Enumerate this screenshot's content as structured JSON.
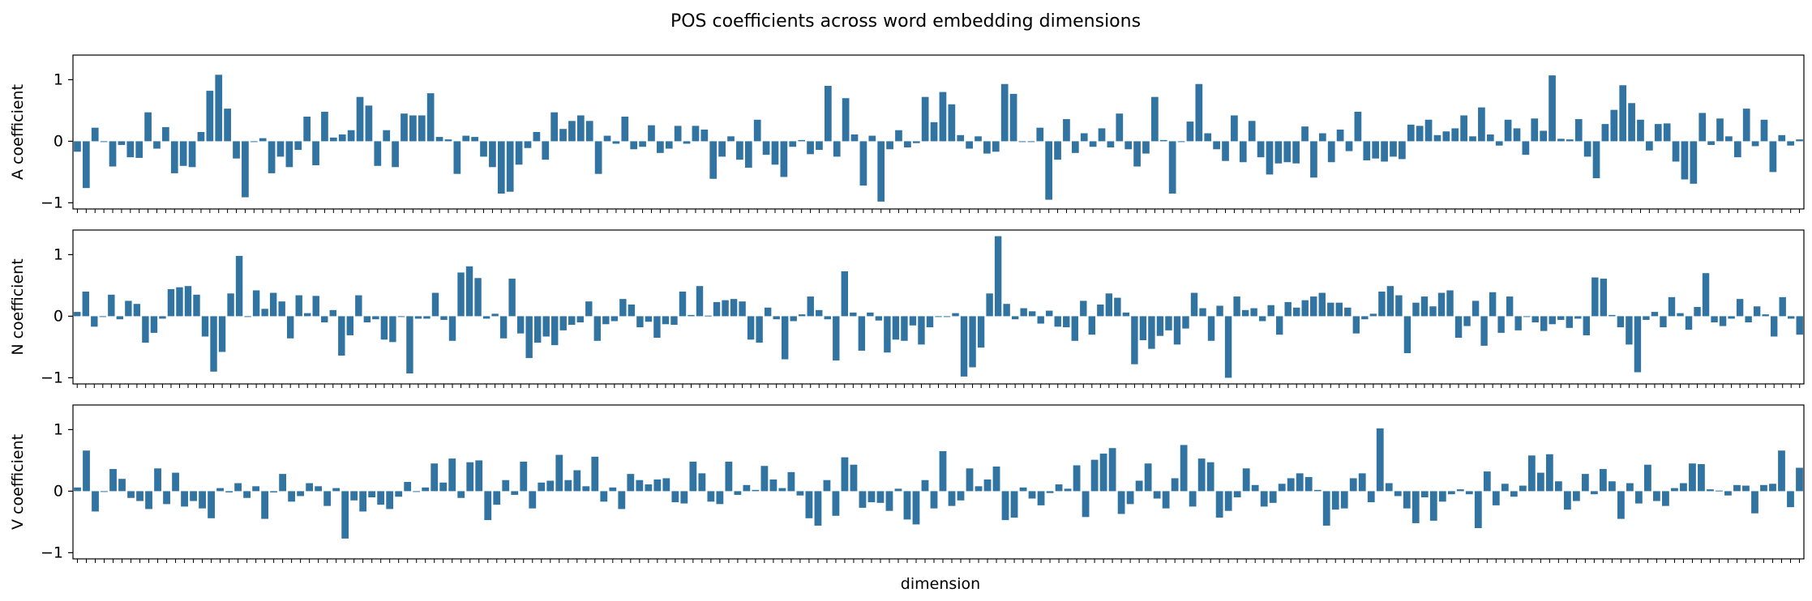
{
  "chart_data": {
    "type": "bar",
    "title": "POS coefficients across word embedding dimensions",
    "xlabel": "dimension",
    "bar_color": "#3274a1",
    "ylim": [
      -1.1,
      1.4
    ],
    "yticks": [
      -1,
      0,
      1
    ],
    "panels": [
      {
        "ylabel": "A coefficient",
        "values": [
          -0.17,
          -0.76,
          0.22,
          0,
          -0.41,
          -0.06,
          -0.26,
          -0.27,
          0.47,
          -0.12,
          0.23,
          -0.52,
          -0.4,
          -0.42,
          0.15,
          0.82,
          1.08,
          0.53,
          -0.28,
          -0.91,
          0,
          0.05,
          -0.52,
          -0.25,
          -0.42,
          -0.14,
          0.4,
          -0.39,
          0.48,
          0.06,
          0.11,
          0.18,
          0.72,
          0.58,
          -0.4,
          0.18,
          -0.42,
          0.45,
          0.42,
          0.42,
          0.78,
          0.07,
          0.03,
          -0.53,
          0.09,
          0.07,
          -0.25,
          -0.42,
          -0.85,
          -0.82,
          -0.38,
          -0.11,
          0.15,
          -0.3,
          0.47,
          0.2,
          0.33,
          0.42,
          0.33,
          -0.53,
          0.09,
          -0.04,
          0.4,
          -0.13,
          -0.09,
          0.26,
          -0.19,
          -0.12,
          0.25,
          -0.04,
          0.25,
          0.19,
          -0.61,
          -0.25,
          0.08,
          -0.3,
          -0.43,
          0.35,
          -0.22,
          -0.38,
          -0.58,
          -0.09,
          0.02,
          -0.21,
          -0.14,
          0.9,
          -0.25,
          0.7,
          0.11,
          -0.72,
          0.09,
          -0.98,
          -0.13,
          0.18,
          -0.1,
          -0.03,
          0.72,
          0.31,
          0.8,
          0.6,
          0.1,
          -0.12,
          0.08,
          -0.2,
          -0.17,
          0.93,
          0.77,
          0,
          0,
          0.22,
          -0.95,
          -0.3,
          0.36,
          -0.19,
          0.13,
          -0.09,
          0.21,
          -0.1,
          0.45,
          -0.13,
          -0.41,
          -0.2,
          0.72,
          0.02,
          -0.85,
          0,
          0.32,
          0.93,
          0.13,
          -0.13,
          -0.32,
          0.42,
          -0.34,
          0.33,
          -0.26,
          -0.54,
          -0.36,
          -0.34,
          -0.36,
          0.24,
          -0.59,
          0.13,
          -0.34,
          0.19,
          -0.16,
          0.48,
          -0.31,
          -0.28,
          -0.33,
          -0.25,
          -0.29,
          0.27,
          0.25,
          0.35,
          0.1,
          0.16,
          0.21,
          0.42,
          0.08,
          0.55,
          0.11,
          -0.07,
          0.35,
          0.21,
          -0.22,
          0.37,
          0.17,
          1.07,
          0.04,
          0.03,
          0.36,
          -0.25,
          -0.6,
          0.28,
          0.51,
          0.91,
          0.62,
          0.35,
          -0.15,
          0.28,
          0.29,
          -0.33,
          -0.62,
          -0.69,
          0.46,
          -0.06,
          0.37,
          0.08,
          -0.26,
          0.53,
          -0.08,
          0.35,
          -0.5,
          0.1,
          -0.07,
          0.03
        ],
        "values_note_first": "first value is the leftmost bar"
      },
      {
        "ylabel": "N coefficient",
        "values": [
          0.07,
          0.4,
          -0.17,
          0,
          0.35,
          -0.05,
          0.25,
          0.2,
          -0.43,
          -0.27,
          -0.04,
          0.44,
          0.47,
          0.49,
          0.35,
          -0.33,
          -0.9,
          -0.58,
          0.37,
          0.98,
          0,
          0.42,
          0.12,
          0.38,
          0.24,
          -0.36,
          0.34,
          0.05,
          0.33,
          -0.1,
          0.1,
          -0.64,
          -0.31,
          0.34,
          -0.1,
          -0.05,
          -0.38,
          -0.42,
          0,
          -0.93,
          -0.04,
          -0.04,
          0.38,
          -0.06,
          -0.4,
          0.71,
          0.81,
          0.62,
          -0.04,
          0.04,
          -0.36,
          0.61,
          -0.28,
          -0.68,
          -0.43,
          -0.33,
          -0.47,
          -0.23,
          -0.14,
          -0.1,
          0.24,
          -0.4,
          -0.13,
          -0.08,
          0.28,
          0.19,
          -0.18,
          -0.09,
          -0.35,
          -0.13,
          -0.14,
          0.4,
          0.02,
          0.49,
          0.01,
          0.23,
          0.26,
          0.28,
          0.24,
          -0.38,
          -0.43,
          0.14,
          -0.05,
          -0.7,
          -0.08,
          0.03,
          0.32,
          0.1,
          -0.05,
          -0.72,
          0.73,
          0.06,
          -0.56,
          0.06,
          -0.07,
          -0.59,
          -0.38,
          -0.4,
          -0.15,
          -0.46,
          -0.18,
          0,
          0,
          0.05,
          -0.98,
          -0.83,
          -0.51,
          0.37,
          1.3,
          0.2,
          -0.05,
          0.13,
          0.08,
          -0.12,
          0.09,
          -0.17,
          -0.18,
          -0.4,
          0.25,
          -0.3,
          0.19,
          0.37,
          0.3,
          0.06,
          -0.78,
          -0.39,
          -0.53,
          -0.32,
          -0.23,
          -0.46,
          -0.2,
          0.38,
          0.13,
          -0.4,
          0.17,
          -1.0,
          0.32,
          0.1,
          0.13,
          -0.08,
          0.18,
          -0.3,
          0.23,
          0.14,
          0.26,
          0.32,
          0.38,
          0.22,
          0.22,
          0.14,
          -0.28,
          -0.05,
          0.04,
          0.4,
          0.49,
          0.34,
          -0.6,
          0.22,
          0.32,
          0.16,
          0.38,
          0.42,
          -0.35,
          -0.16,
          0.25,
          -0.48,
          0.39,
          -0.27,
          0.32,
          -0.23,
          0,
          -0.1,
          -0.24,
          -0.13,
          -0.06,
          -0.19,
          -0.04,
          -0.31,
          0.63,
          0.61,
          0.02,
          -0.18,
          -0.46,
          -0.91,
          -0.06,
          0.07,
          -0.18,
          0.31,
          0.05,
          -0.22,
          0.15,
          0.7,
          -0.1,
          -0.16,
          -0.04,
          0.28,
          -0.1,
          0.16,
          0.03,
          -0.33,
          0.31,
          -0.04,
          -0.3
        ]
      },
      {
        "ylabel": "V coefficient",
        "values": [
          0.06,
          0.66,
          -0.33,
          0,
          0.36,
          0.2,
          -0.11,
          -0.16,
          -0.29,
          0.37,
          -0.21,
          0.3,
          -0.25,
          -0.16,
          -0.28,
          -0.44,
          0.05,
          -0.02,
          0.13,
          -0.11,
          0.08,
          -0.45,
          -0.02,
          0.28,
          -0.17,
          -0.08,
          0.13,
          0.08,
          -0.24,
          0.05,
          -0.77,
          -0.15,
          -0.33,
          -0.1,
          -0.22,
          -0.29,
          -0.09,
          0.15,
          -0.01,
          0.06,
          0.45,
          0.14,
          0.53,
          -0.11,
          0.47,
          0.5,
          -0.47,
          -0.22,
          0.18,
          -0.06,
          0.48,
          -0.28,
          0.14,
          0.17,
          0.59,
          0.18,
          0.34,
          0.08,
          0.56,
          -0.17,
          0.06,
          -0.29,
          0.28,
          0.18,
          0.11,
          0.19,
          0.21,
          -0.18,
          -0.2,
          0.48,
          0.29,
          -0.17,
          -0.21,
          0.48,
          -0.06,
          0.1,
          0.02,
          0.41,
          0.19,
          0.05,
          0.31,
          -0.07,
          -0.44,
          -0.56,
          0.18,
          -0.4,
          0.55,
          0.43,
          -0.27,
          -0.18,
          -0.19,
          -0.32,
          0.04,
          -0.46,
          -0.54,
          0.18,
          -0.28,
          0.65,
          -0.24,
          -0.15,
          0.37,
          0.08,
          0.19,
          0.4,
          -0.47,
          -0.43,
          0.06,
          -0.12,
          -0.23,
          -0.03,
          0.11,
          0.04,
          0.42,
          -0.42,
          0.51,
          0.61,
          0.7,
          -0.37,
          -0.21,
          0.17,
          0.45,
          -0.12,
          -0.28,
          0.21,
          0.75,
          -0.25,
          0.53,
          0.47,
          -0.43,
          -0.32,
          -0.1,
          0.37,
          0.1,
          -0.25,
          -0.19,
          0.12,
          0.21,
          0.29,
          0.23,
          0.02,
          -0.56,
          -0.3,
          -0.28,
          0.21,
          0.29,
          -0.18,
          1.02,
          0.13,
          -0.08,
          -0.28,
          -0.52,
          -0.1,
          -0.48,
          -0.17,
          -0.05,
          0.03,
          -0.05,
          -0.6,
          0.32,
          -0.23,
          0.12,
          -0.09,
          0.09,
          0.58,
          0.3,
          0.6,
          0.16,
          -0.3,
          -0.16,
          0.28,
          -0.05,
          0.36,
          0.16,
          -0.45,
          0.13,
          -0.2,
          0.43,
          -0.16,
          -0.24,
          0.05,
          0.13,
          0.45,
          0.44,
          0.03,
          0.01,
          -0.07,
          0.1,
          0.09,
          -0.36,
          0.1,
          0.12,
          0.66,
          -0.26,
          0.38
        ]
      }
    ]
  }
}
